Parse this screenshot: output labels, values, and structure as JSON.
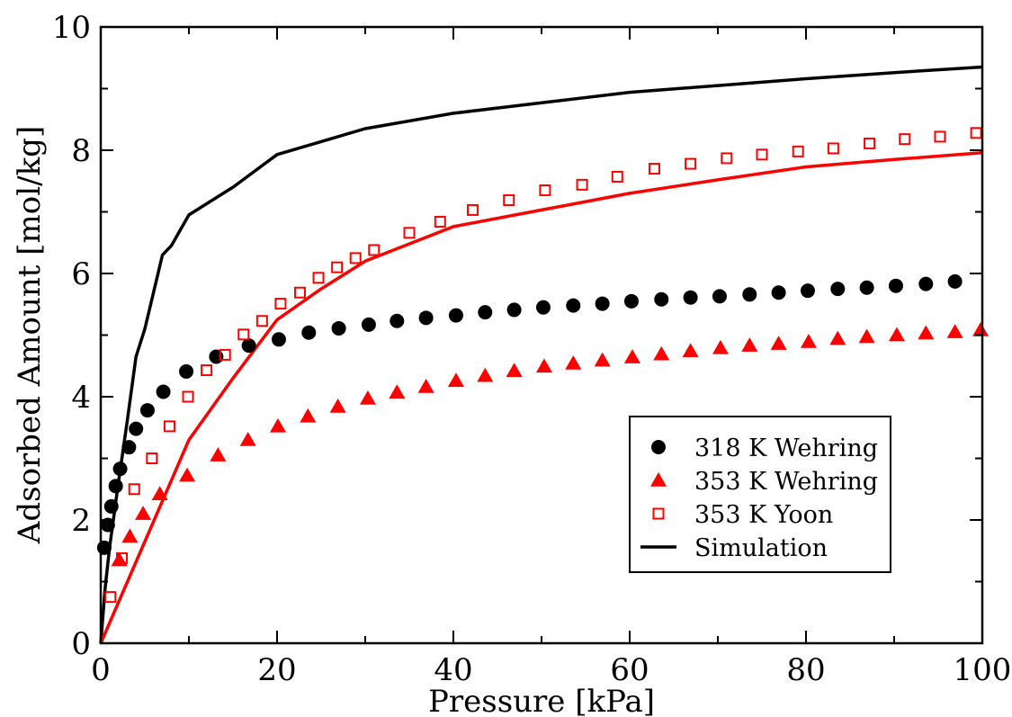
{
  "chart_data": {
    "type": "scatter",
    "xlabel": "Pressure [kPa]",
    "ylabel": "Adsorbed Amount [mol/kg]",
    "xlim": [
      0,
      100
    ],
    "ylim": [
      0,
      10
    ],
    "x_ticks": [
      "0",
      "20",
      "40",
      "60",
      "80",
      "100"
    ],
    "y_ticks": [
      "0",
      "2",
      "4",
      "6",
      "8",
      "10"
    ],
    "grid": false,
    "legend_position": "bottom-right",
    "series": [
      {
        "name": "318 K Wehring",
        "kind": "scatter",
        "marker": "circle",
        "color": "#000000",
        "x": [
          0.4,
          0.8,
          1.2,
          1.7,
          2.2,
          3.2,
          4.0,
          5.3,
          7.1,
          9.7,
          13.1,
          16.8,
          20.2,
          23.6,
          27.0,
          30.4,
          33.6,
          36.9,
          40.3,
          43.6,
          46.9,
          50.2,
          53.6,
          56.9,
          60.2,
          63.6,
          66.9,
          70.2,
          73.6,
          76.9,
          80.2,
          83.6,
          86.9,
          90.2,
          93.6,
          96.9
        ],
        "y": [
          1.55,
          1.92,
          2.22,
          2.55,
          2.83,
          3.18,
          3.48,
          3.78,
          4.08,
          4.41,
          4.65,
          4.83,
          4.93,
          5.04,
          5.11,
          5.17,
          5.23,
          5.28,
          5.32,
          5.37,
          5.41,
          5.45,
          5.48,
          5.51,
          5.55,
          5.58,
          5.61,
          5.63,
          5.66,
          5.69,
          5.72,
          5.75,
          5.77,
          5.8,
          5.83,
          5.87
        ]
      },
      {
        "name": "353 K Wehring",
        "kind": "scatter",
        "marker": "triangle",
        "color": "#ff0000",
        "x": [
          2.1,
          3.3,
          4.8,
          6.7,
          9.8,
          13.3,
          16.7,
          20.1,
          23.5,
          26.9,
          30.3,
          33.6,
          36.9,
          40.3,
          43.6,
          46.9,
          50.3,
          53.6,
          56.9,
          60.3,
          63.6,
          66.9,
          70.3,
          73.6,
          76.9,
          80.3,
          83.6,
          86.9,
          90.3,
          93.6,
          96.9,
          99.8
        ],
        "y": [
          1.35,
          1.73,
          2.1,
          2.42,
          2.72,
          3.05,
          3.3,
          3.52,
          3.68,
          3.84,
          3.97,
          4.07,
          4.16,
          4.26,
          4.34,
          4.42,
          4.49,
          4.54,
          4.59,
          4.64,
          4.69,
          4.74,
          4.79,
          4.83,
          4.86,
          4.89,
          4.94,
          4.97,
          5.0,
          5.03,
          5.05,
          5.08
        ]
      },
      {
        "name": "353 K Yoon",
        "kind": "scatter",
        "marker": "square-open",
        "color": "#ff0000",
        "x": [
          1.1,
          2.4,
          3.8,
          5.8,
          7.8,
          9.9,
          12.0,
          14.1,
          16.2,
          18.3,
          20.4,
          22.6,
          24.7,
          26.8,
          28.9,
          31.0,
          35.0,
          38.5,
          42.2,
          46.3,
          50.4,
          54.6,
          58.6,
          62.8,
          66.9,
          71.0,
          75.0,
          79.1,
          83.1,
          87.2,
          91.2,
          95.2,
          99.3
        ],
        "y": [
          0.75,
          1.38,
          2.5,
          3.0,
          3.52,
          4.0,
          4.43,
          4.68,
          5.01,
          5.23,
          5.51,
          5.69,
          5.93,
          6.1,
          6.25,
          6.38,
          6.66,
          6.84,
          7.03,
          7.19,
          7.35,
          7.44,
          7.57,
          7.7,
          7.78,
          7.87,
          7.93,
          7.98,
          8.03,
          8.11,
          8.18,
          8.22,
          8.28
        ]
      },
      {
        "name": "Simulation",
        "kind": "line",
        "color": "#000000",
        "x": [
          0,
          0.5,
          1,
          2,
          3,
          4,
          5,
          6,
          7,
          8,
          10,
          15,
          20,
          25,
          30,
          40,
          50,
          60,
          70,
          80,
          90,
          100
        ],
        "y": [
          0,
          0.9,
          1.55,
          2.6,
          3.6,
          4.65,
          5.1,
          5.7,
          6.3,
          6.45,
          6.95,
          7.4,
          7.93,
          8.14,
          8.35,
          8.6,
          8.77,
          8.94,
          9.05,
          9.16,
          9.26,
          9.35
        ]
      },
      {
        "name": "",
        "kind": "line",
        "color": "#ff0000",
        "x": [
          0,
          5,
          10,
          15,
          20,
          25,
          30,
          40,
          50,
          60,
          70,
          80,
          90,
          100
        ],
        "y": [
          0,
          1.65,
          3.3,
          4.3,
          5.25,
          5.75,
          6.2,
          6.76,
          7.03,
          7.3,
          7.52,
          7.73,
          7.85,
          7.96
        ]
      }
    ]
  }
}
